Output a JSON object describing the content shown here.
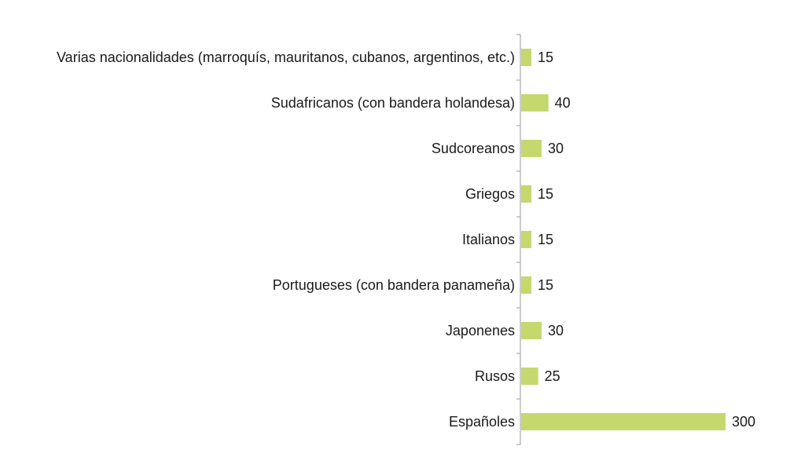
{
  "chart_data": {
    "type": "bar",
    "orientation": "horizontal",
    "categories": [
      "Varias nacionalidades (marroquís, mauritanos, cubanos, argentinos, etc.)",
      "Sudafricanos (con bandera holandesa)",
      "Sudcoreanos",
      "Griegos",
      "Italianos",
      "Portugueses (con bandera panameña)",
      "Japonenes",
      "Rusos",
      "Españoles"
    ],
    "values": [
      15,
      40,
      30,
      15,
      15,
      15,
      30,
      25,
      300
    ],
    "title": "",
    "xlabel": "",
    "ylabel": "",
    "xlim": [
      0,
      300
    ],
    "grid": false,
    "legend": "none",
    "data_labels": true,
    "colors": {
      "bar": "#c5d86d",
      "axis": "#9a9a9a",
      "text": "#1a1a1a"
    }
  }
}
